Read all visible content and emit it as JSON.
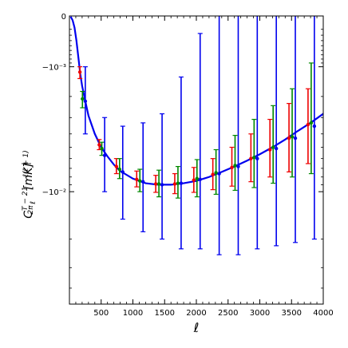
{
  "chart_data": {
    "type": "line",
    "xlabel": "ℓ",
    "ylabel": "ℓ(ℓ+1)/2π C_ℓ^{T-21} [mK]",
    "xlim": [
      0,
      4000
    ],
    "yscale": "symlog",
    "linthresh": 0.001,
    "ylim": [
      -0.05,
      0
    ],
    "x_ticks": [
      500,
      1000,
      1500,
      2000,
      2500,
      3000,
      3500,
      4000
    ],
    "x_tick_labels": [
      "500",
      "1000",
      "1500",
      "2000",
      "2500",
      "3000",
      "3500",
      "4000"
    ],
    "y_ticks": [
      0,
      -0.001,
      -0.01
    ],
    "y_tick_labels": [
      "0",
      "−10⁻³",
      "−10⁻²"
    ],
    "colors": {
      "model": "#0000ee",
      "red": "#ee0000",
      "green": "#008800",
      "blue": "#0000ee"
    },
    "model_curve": {
      "x": [
        20,
        50,
        80,
        110,
        140,
        170,
        200,
        250,
        300,
        400,
        500,
        600,
        700,
        800,
        1000,
        1200,
        1400,
        1600,
        1800,
        2000,
        2200,
        2400,
        2600,
        2800,
        3000,
        3200,
        3400,
        3600,
        3800,
        4000
      ],
      "y": [
        -1e-05,
        -6e-05,
        -0.00017,
        -0.0004,
        -0.00075,
        -0.0012,
        -0.0016,
        -0.0022,
        -0.0029,
        -0.004,
        -0.005,
        -0.0058,
        -0.0066,
        -0.0073,
        -0.0082,
        -0.0088,
        -0.009,
        -0.009,
        -0.0088,
        -0.0085,
        -0.008,
        -0.0074,
        -0.0068,
        -0.0062,
        -0.0056,
        -0.005,
        -0.0044,
        -0.0038,
        -0.0033,
        -0.0028
      ]
    },
    "series": [
      {
        "color_key": "red",
        "points": [
          {
            "x": 165,
            "y": -0.00115,
            "lo": -0.00135,
            "hi": -0.001
          },
          {
            "x": 470,
            "y": -0.0048,
            "lo": -0.0052,
            "hi": -0.0044
          },
          {
            "x": 740,
            "y": -0.0068,
            "lo": -0.0076,
            "hi": -0.006
          },
          {
            "x": 1060,
            "y": -0.0083,
            "lo": -0.0093,
            "hi": -0.0073
          },
          {
            "x": 1360,
            "y": -0.0089,
            "lo": -0.0101,
            "hi": -0.0078
          },
          {
            "x": 1660,
            "y": -0.0089,
            "lo": -0.0103,
            "hi": -0.0076
          },
          {
            "x": 1960,
            "y": -0.0084,
            "lo": -0.0101,
            "hi": -0.0069
          },
          {
            "x": 2260,
            "y": -0.0077,
            "lo": -0.0097,
            "hi": -0.006
          },
          {
            "x": 2560,
            "y": -0.0069,
            "lo": -0.0092,
            "hi": -0.005
          },
          {
            "x": 2860,
            "y": -0.006,
            "lo": -0.0086,
            "hi": -0.004
          },
          {
            "x": 3160,
            "y": -0.0052,
            "lo": -0.008,
            "hi": -0.0031
          },
          {
            "x": 3460,
            "y": -0.0043,
            "lo": -0.0074,
            "hi": -0.0023
          },
          {
            "x": 3760,
            "y": -0.0034,
            "lo": -0.0065,
            "hi": -0.0017
          }
        ]
      },
      {
        "color_key": "green",
        "points": [
          {
            "x": 205,
            "y": -0.0021,
            "lo": -0.0025,
            "hi": -0.0018
          },
          {
            "x": 510,
            "y": -0.0051,
            "lo": -0.0057,
            "hi": -0.0046
          },
          {
            "x": 790,
            "y": -0.0071,
            "lo": -0.0082,
            "hi": -0.006
          },
          {
            "x": 1110,
            "y": -0.0085,
            "lo": -0.01,
            "hi": -0.0071
          },
          {
            "x": 1410,
            "y": -0.0089,
            "lo": -0.0108,
            "hi": -0.0072
          },
          {
            "x": 1710,
            "y": -0.0088,
            "lo": -0.011,
            "hi": -0.0068
          },
          {
            "x": 2010,
            "y": -0.0082,
            "lo": -0.0108,
            "hi": -0.0061
          },
          {
            "x": 2310,
            "y": -0.0075,
            "lo": -0.0104,
            "hi": -0.0052
          },
          {
            "x": 2610,
            "y": -0.0067,
            "lo": -0.0098,
            "hi": -0.0041
          },
          {
            "x": 2910,
            "y": -0.0059,
            "lo": -0.0094,
            "hi": -0.0031
          },
          {
            "x": 3210,
            "y": -0.005,
            "lo": -0.0088,
            "hi": -0.0024
          },
          {
            "x": 3510,
            "y": -0.0042,
            "lo": -0.008,
            "hi": -0.0017
          },
          {
            "x": 3810,
            "y": -0.0033,
            "lo": -0.0076,
            "hi": -0.0009
          }
        ]
      },
      {
        "color_key": "blue",
        "points": [
          {
            "x": 250,
            "y": -0.0022,
            "lo": -0.004,
            "hi": -0.001
          },
          {
            "x": 555,
            "y": -0.0057,
            "lo": -0.01,
            "hi": -0.003
          },
          {
            "x": 840,
            "y": -0.0074,
            "lo": -0.015,
            "hi": -0.0035
          },
          {
            "x": 1160,
            "y": -0.0086,
            "lo": -0.018,
            "hi": -0.0033
          },
          {
            "x": 1460,
            "y": -0.009,
            "lo": -0.02,
            "hi": -0.0028
          },
          {
            "x": 1760,
            "y": -0.0088,
            "lo": -0.023,
            "hi": -0.0013
          },
          {
            "x": 2060,
            "y": -0.0083,
            "lo": -0.023,
            "hi": -0.00027
          },
          {
            "x": 2360,
            "y": -0.0076,
            "lo": -0.025,
            "hi": 0
          },
          {
            "x": 2660,
            "y": -0.0068,
            "lo": -0.025,
            "hi": 0
          },
          {
            "x": 2960,
            "y": -0.006,
            "lo": -0.023,
            "hi": 0
          },
          {
            "x": 3260,
            "y": -0.0051,
            "lo": -0.022,
            "hi": 0
          },
          {
            "x": 3560,
            "y": -0.0043,
            "lo": -0.021,
            "hi": 0
          },
          {
            "x": 3860,
            "y": -0.0035,
            "lo": -0.02,
            "hi": 0
          }
        ]
      }
    ]
  }
}
